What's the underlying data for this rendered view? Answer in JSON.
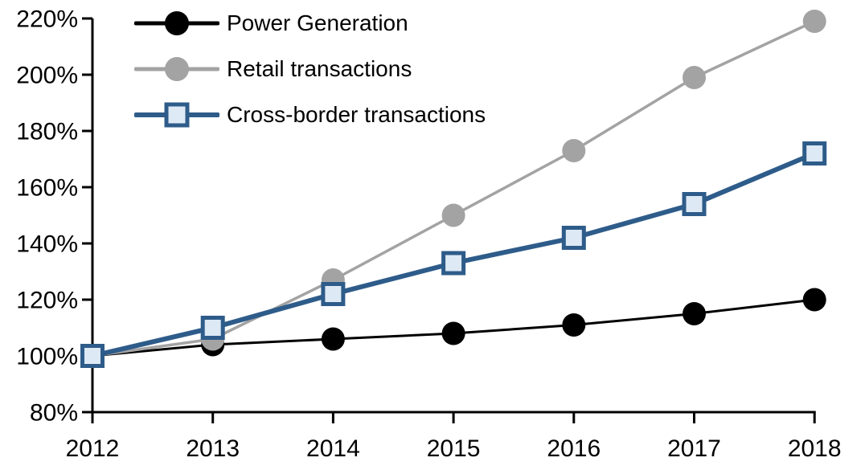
{
  "chart_data": {
    "type": "line",
    "title": "",
    "categories": [
      "2012",
      "2013",
      "2014",
      "2015",
      "2016",
      "2017",
      "2018"
    ],
    "series": [
      {
        "name": "Power Generation",
        "color": "#000000",
        "marker": "circle",
        "marker_fill": "#000000",
        "line_width": 3,
        "values": [
          100,
          104,
          106,
          108,
          111,
          115,
          120
        ]
      },
      {
        "name": "Retail transactions",
        "color": "#A3A3A3",
        "marker": "circle",
        "marker_fill": "#A3A3A3",
        "line_width": 3.5,
        "values": [
          100,
          106,
          127,
          150,
          173,
          199,
          219
        ]
      },
      {
        "name": "Cross-border transactions",
        "color": "#2E5C8A",
        "marker": "square",
        "marker_fill": "#DDE9F5",
        "line_width": 6,
        "values": [
          100,
          110,
          122,
          133,
          142,
          154,
          172
        ]
      }
    ],
    "y_axis": {
      "min": 80,
      "max": 220,
      "step": 20,
      "unit": "%",
      "tick_labels": [
        "80%",
        "100%",
        "120%",
        "140%",
        "160%",
        "180%",
        "200%",
        "220%"
      ]
    },
    "x_axis": {
      "labels": [
        "2012",
        "2013",
        "2014",
        "2015",
        "2016",
        "2017",
        "2018"
      ]
    },
    "legend": {
      "position": "top-left"
    },
    "grid": false,
    "background": "#FFFFFF",
    "axis_color": "#000000"
  }
}
